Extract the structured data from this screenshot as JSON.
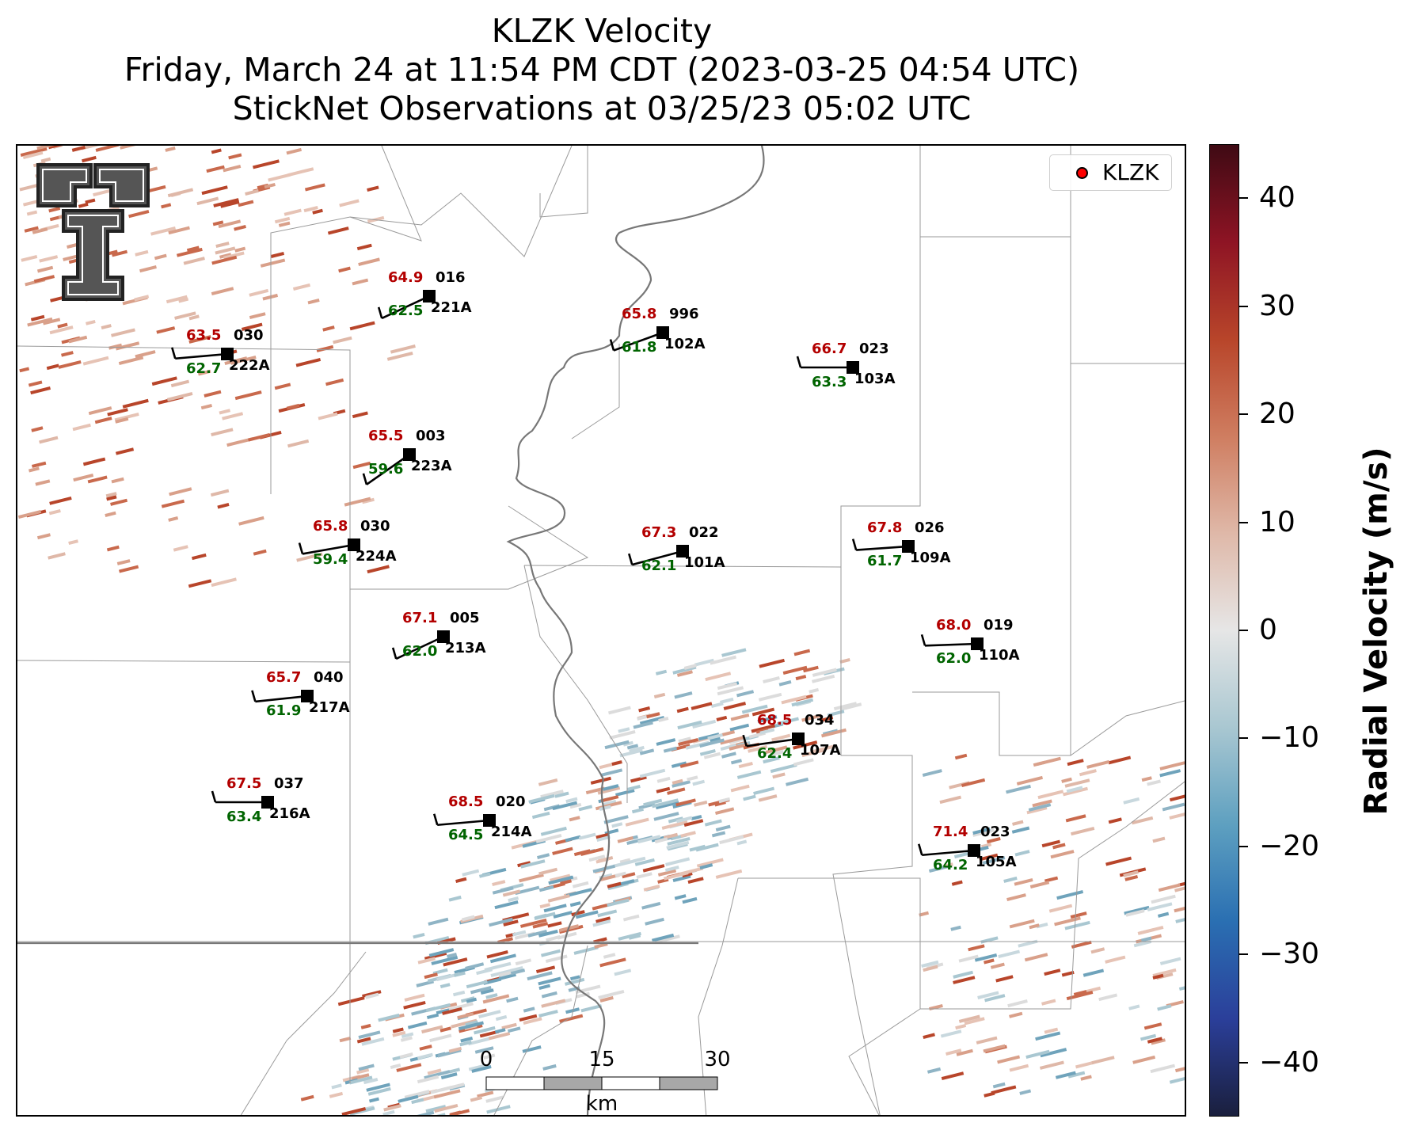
{
  "title": {
    "line1": "KLZK Velocity",
    "line2": "Friday, March 24 at 11:54 PM CDT (2023-03-25 04:54 UTC)",
    "line3": "StickNet Observations at 03/25/23 05:02 UTC"
  },
  "legend": {
    "label": "KLZK",
    "marker_color": "#ff0000"
  },
  "logo": {
    "name": "texas-tech-double-t-logo",
    "letters": "TT"
  },
  "scale_bar": {
    "unit": "km",
    "ticks": [
      "0",
      "15",
      "30"
    ]
  },
  "colorbar": {
    "title": "Radial Velocity (m/s)",
    "min": -45,
    "max": 45,
    "tick_labels": [
      "40",
      "30",
      "20",
      "10",
      "0",
      "−10",
      "−20",
      "−30",
      "−40"
    ],
    "tick_values": [
      40,
      30,
      20,
      10,
      0,
      -10,
      -20,
      -30,
      -40
    ],
    "colors": [
      "#1a1f3d",
      "#2b3f9a",
      "#2a6fb2",
      "#5ea0c0",
      "#a9c7d1",
      "#e6e6e6",
      "#dfb8a8",
      "#cf7d60",
      "#b8452a",
      "#8e1424",
      "#3f0a14"
    ]
  },
  "stations": [
    {
      "id": "221A",
      "temp": "64.9",
      "dew": "62.5",
      "dir": "016"
    },
    {
      "id": "222A",
      "temp": "63.5",
      "dew": "62.7",
      "dir": "030"
    },
    {
      "id": "102A",
      "temp": "65.8",
      "dew": "61.8",
      "dir": "996"
    },
    {
      "id": "103A",
      "temp": "66.7",
      "dew": "63.3",
      "dir": "023"
    },
    {
      "id": "223A",
      "temp": "65.5",
      "dew": "59.6",
      "dir": "003"
    },
    {
      "id": "224A",
      "temp": "65.8",
      "dew": "59.4",
      "dir": "030"
    },
    {
      "id": "101A",
      "temp": "67.3",
      "dew": "62.1",
      "dir": "022"
    },
    {
      "id": "109A",
      "temp": "67.8",
      "dew": "61.7",
      "dir": "026"
    },
    {
      "id": "213A",
      "temp": "67.1",
      "dew": "62.0",
      "dir": "005"
    },
    {
      "id": "110A",
      "temp": "68.0",
      "dew": "62.0",
      "dir": "019"
    },
    {
      "id": "217A",
      "temp": "65.7",
      "dew": "61.9",
      "dir": "040"
    },
    {
      "id": "107A",
      "temp": "68.5",
      "dew": "62.4",
      "dir": "034"
    },
    {
      "id": "216A",
      "temp": "67.5",
      "dew": "63.4",
      "dir": "037"
    },
    {
      "id": "214A",
      "temp": "68.5",
      "dew": "64.5",
      "dir": "020"
    },
    {
      "id": "105A",
      "temp": "71.4",
      "dew": "64.2",
      "dir": "023"
    }
  ]
}
